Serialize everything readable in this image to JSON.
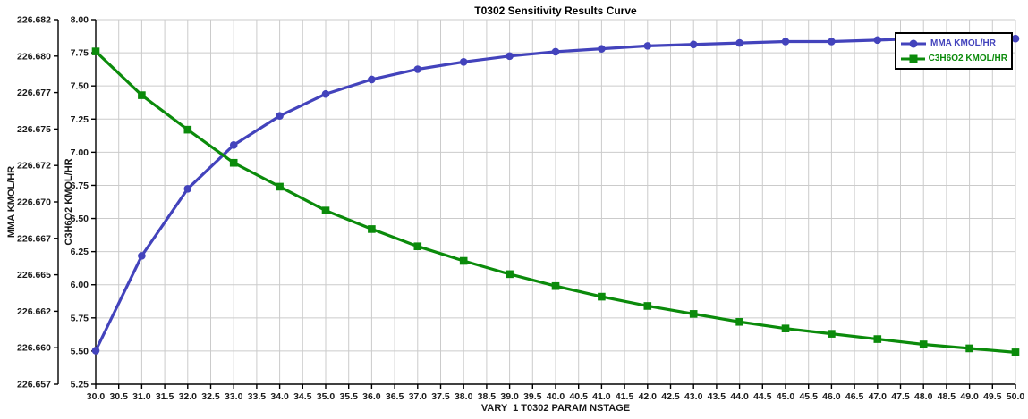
{
  "window": {
    "title": "T0302 Sensitivity Results Curve"
  },
  "colors": {
    "mma": "#4343BC",
    "c3h6o2": "#0B8B0B",
    "grid": "#CBCBCB",
    "axis": "#000000",
    "tick_text": "#1A1A1A",
    "background": "#FFFFFF",
    "legend_border": "#000000"
  },
  "chart_data": {
    "type": "line",
    "title": "T0302 Sensitivity Results Curve",
    "grid": true,
    "x": [
      30,
      31,
      32,
      33,
      34,
      35,
      36,
      37,
      38,
      39,
      40,
      41,
      42,
      43,
      44,
      45,
      46,
      47,
      48,
      49,
      50
    ],
    "series": [
      {
        "name": "MMA KMOL/HR",
        "axis": "left",
        "color": "#4343BC",
        "marker": "circle",
        "values": [
          226.6593,
          226.6658,
          226.6704,
          226.6734,
          226.6754,
          226.6769,
          226.6779,
          226.6786,
          226.6791,
          226.6795,
          226.6798,
          226.68,
          226.6802,
          226.6803,
          226.6804,
          226.6805,
          226.6805,
          226.6806,
          226.6807,
          226.6807,
          226.6807
        ]
      },
      {
        "name": "C3H6O2 KMOL/HR",
        "axis": "right",
        "color": "#0B8B0B",
        "marker": "square",
        "values": [
          7.76,
          7.43,
          7.17,
          6.92,
          6.74,
          6.56,
          6.42,
          6.29,
          6.18,
          6.08,
          5.99,
          5.91,
          5.84,
          5.78,
          5.72,
          5.67,
          5.63,
          5.59,
          5.55,
          5.52,
          5.49
        ]
      }
    ],
    "axes": {
      "x": {
        "label": "VARY  1 T0302 PARAM NSTAGE",
        "min": 30.0,
        "max": 50.0,
        "tick_step": 0.5,
        "tick_labels": [
          "30.0",
          "30.5",
          "31.0",
          "31.5",
          "32.0",
          "32.5",
          "33.0",
          "33.5",
          "34.0",
          "34.5",
          "35.0",
          "35.5",
          "36.0",
          "36.5",
          "37.0",
          "37.5",
          "38.0",
          "38.5",
          "39.0",
          "39.5",
          "40.0",
          "40.5",
          "41.0",
          "41.5",
          "42.0",
          "42.5",
          "43.0",
          "43.5",
          "44.0",
          "44.5",
          "45.0",
          "45.5",
          "46.0",
          "46.5",
          "47.0",
          "47.5",
          "48.0",
          "48.5",
          "49.0",
          "49.5",
          "50.0"
        ]
      },
      "left": {
        "label": "MMA KMOL/HR",
        "min": 226.657,
        "max": 226.682,
        "tick_labels": [
          "226.657",
          "226.660",
          "226.662",
          "226.665",
          "226.667",
          "226.670",
          "226.672",
          "226.675",
          "226.677",
          "226.680",
          "226.682"
        ]
      },
      "right": {
        "label": "C3H6O2 KMOL/HR",
        "min": 5.25,
        "max": 8.0,
        "tick_labels": [
          "5.25",
          "5.50",
          "5.75",
          "6.00",
          "6.25",
          "6.50",
          "6.75",
          "7.00",
          "7.25",
          "7.50",
          "7.75",
          "8.00"
        ]
      }
    },
    "legend": {
      "position": "top-right",
      "entries": [
        "MMA KMOL/HR",
        "C3H6O2 KMOL/HR"
      ]
    }
  }
}
